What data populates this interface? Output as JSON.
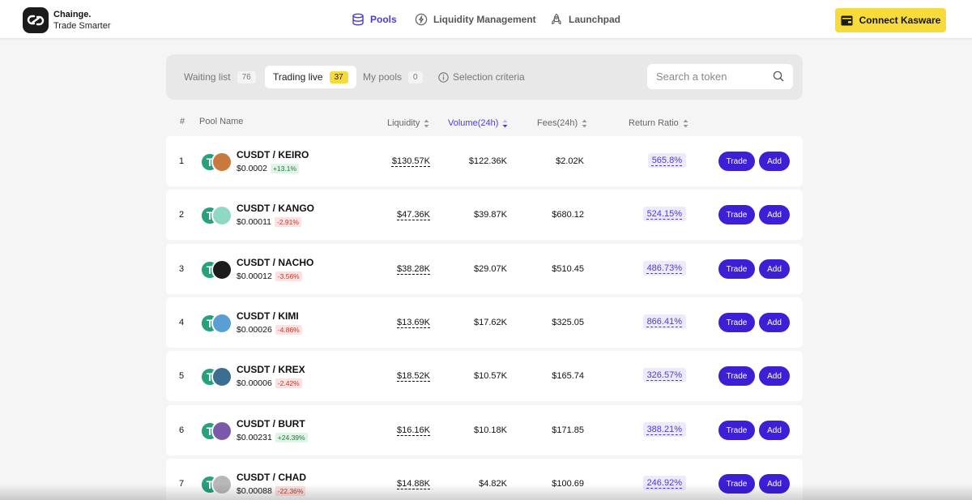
{
  "brand": {
    "name": "Chainge.",
    "tagline": "Trade Smarter"
  },
  "nav": {
    "pools": "Pools",
    "liquidity_management": "Liquidity Management",
    "launchpad": "Launchpad"
  },
  "connect_label": "Connect Kasware",
  "tabs": {
    "waiting": {
      "label": "Waiting list",
      "count": "76"
    },
    "trading": {
      "label": "Trading live",
      "count": "37"
    },
    "mypools": {
      "label": "My pools",
      "count": "0"
    }
  },
  "selection_criteria": "Selection criteria",
  "search": {
    "placeholder": "Search a token"
  },
  "columns": {
    "rank": "#",
    "pool_name": "Pool Name",
    "liquidity": "Liquidity",
    "volume": "Volume(24h)",
    "fees": "Fees(24h)",
    "return_ratio": "Return Ratio"
  },
  "actions": {
    "trade": "Trade",
    "add": "Add"
  },
  "rows": [
    {
      "rank": "1",
      "pair": "CUSDT / KEIRO",
      "price": "$0.0002",
      "change": "+13.1%",
      "direction": "up",
      "liquidity": "$130.57K",
      "volume": "$122.36K",
      "fees": "$2.02K",
      "return_ratio": "565.8%",
      "token_color": "#c9793e"
    },
    {
      "rank": "2",
      "pair": "CUSDT / KANGO",
      "price": "$0.00011",
      "change": "-2.91%",
      "direction": "down",
      "liquidity": "$47.36K",
      "volume": "$39.87K",
      "fees": "$680.12",
      "return_ratio": "524.15%",
      "token_color": "#8fd9c4"
    },
    {
      "rank": "3",
      "pair": "CUSDT / NACHO",
      "price": "$0.00012",
      "change": "-3.56%",
      "direction": "down",
      "liquidity": "$38.28K",
      "volume": "$29.07K",
      "fees": "$510.45",
      "return_ratio": "486.73%",
      "token_color": "#1c1c1c"
    },
    {
      "rank": "4",
      "pair": "CUSDT / KIMI",
      "price": "$0.00026",
      "change": "-4.86%",
      "direction": "down",
      "liquidity": "$13.69K",
      "volume": "$17.62K",
      "fees": "$325.05",
      "return_ratio": "866.41%",
      "token_color": "#5a9fd4"
    },
    {
      "rank": "5",
      "pair": "CUSDT / KREX",
      "price": "$0.00006",
      "change": "-2.42%",
      "direction": "down",
      "liquidity": "$18.52K",
      "volume": "$10.57K",
      "fees": "$165.74",
      "return_ratio": "326.57%",
      "token_color": "#3b6e8f"
    },
    {
      "rank": "6",
      "pair": "CUSDT / BURT",
      "price": "$0.00231",
      "change": "+24.39%",
      "direction": "up",
      "liquidity": "$16.16K",
      "volume": "$10.18K",
      "fees": "$171.85",
      "return_ratio": "388.21%",
      "token_color": "#7a5aa8"
    },
    {
      "rank": "7",
      "pair": "CUSDT / CHAD",
      "price": "$0.00088",
      "change": "-22.36%",
      "direction": "down",
      "liquidity": "$14.88K",
      "volume": "$4.82K",
      "fees": "$100.69",
      "return_ratio": "246.92%",
      "token_color": "#b8b8b8"
    }
  ],
  "colors": {
    "accent": "#4b3bd6",
    "button": "#3d1fd6",
    "connect": "#f7da3c",
    "usdt": "#26a17b"
  }
}
